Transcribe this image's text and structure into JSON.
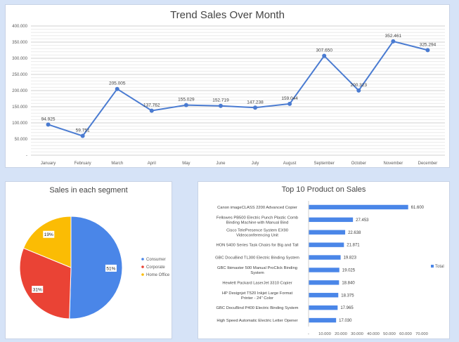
{
  "colors": {
    "line": "#4a7bd1",
    "grid": "#d9d9d9",
    "consumer": "#4a86e8",
    "corporate": "#ea4335",
    "home_office": "#fbbc04",
    "bar": "#4a86e8",
    "text": "#595959"
  },
  "chart_data": [
    {
      "type": "line",
      "title": "Trend Sales Over Month",
      "categories": [
        "January",
        "February",
        "March",
        "April",
        "May",
        "June",
        "July",
        "August",
        "September",
        "October",
        "November",
        "December"
      ],
      "series": [
        {
          "values": [
            94925,
            59751,
            205005,
            137762,
            155029,
            152719,
            147238,
            159044,
            307650,
            200323,
            352461,
            325294
          ],
          "data_labels": [
            "94.925",
            "59.751",
            "205.005",
            "137.762",
            "155.029",
            "152.719",
            "147.238",
            "159.044",
            "307.650",
            "200.323",
            "352.461",
            "325.294"
          ]
        }
      ],
      "y_ticks": [
        "400.000",
        "350.000",
        "300.000",
        "250.000",
        "200.000",
        "150.000",
        "100.000",
        "50.000",
        "-"
      ],
      "ylim": [
        0,
        400000
      ],
      "grid": true
    },
    {
      "type": "pie",
      "title": "Sales in each segment",
      "slices": [
        {
          "name": "Consumer",
          "value": 51,
          "label": "51%"
        },
        {
          "name": "Corporate",
          "value": 31,
          "label": "31%"
        },
        {
          "name": "Home Office",
          "value": 19,
          "label": "19%"
        }
      ],
      "legend": "right"
    },
    {
      "type": "bar",
      "orientation": "horizontal",
      "title": "Top 10 Product on Sales",
      "categories": [
        "Canon imageCLASS 2200 Advanced Copier",
        "Fellowes PB500 Electric Punch Plastic Comb Binding Machine with Manual Bind",
        "Cisco TelePresence System EX90 Videoconferencing Unit",
        "HON 5400 Series Task Chairs for Big and Tall",
        "GBC DocuBind TL300 Electric Binding System",
        "GBC Ibimaster 500 Manual ProClick Binding System",
        "Hewlett Packard LaserJet 3310 Copier",
        "HP Designjet T520 Inkjet Large Format Printer - 24\" Color",
        "GBC DocuBind P400 Electric Binding System",
        "High Speed Automatic Electric Letter Opener"
      ],
      "series": [
        {
          "name": "Total",
          "values": [
            61600,
            27453,
            22638,
            21871,
            19823,
            19025,
            18840,
            18375,
            17965,
            17030
          ],
          "data_labels": [
            "61.600",
            "27.453",
            "22.638",
            "21.871",
            "19.823",
            "19.025",
            "18.840",
            "18.375",
            "17.965",
            "17.030"
          ]
        }
      ],
      "x_ticks": [
        "-",
        "10.000",
        "20.000",
        "30.000",
        "40.000",
        "50.000",
        "60.000",
        "70.000"
      ],
      "xlim": [
        0,
        70000
      ],
      "legend": "right"
    }
  ]
}
